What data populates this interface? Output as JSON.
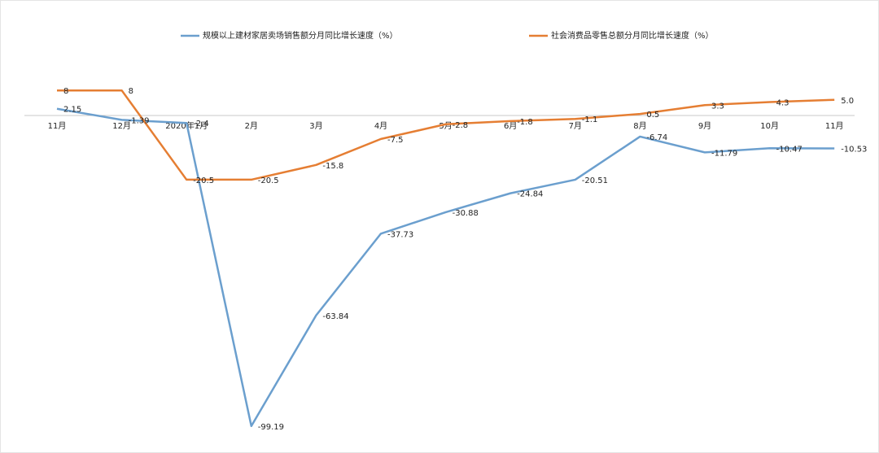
{
  "chart_data": {
    "type": "line",
    "categories": [
      "11月",
      "12月",
      "2020年1月",
      "2月",
      "3月",
      "4月",
      "5月",
      "6月",
      "7月",
      "8月",
      "9月",
      "10月",
      "11月"
    ],
    "series": [
      {
        "name": "规模以上建材家居卖场销售额分月同比增长速度（%）",
        "color": "#6b9fce",
        "values": [
          2.15,
          -1.39,
          -2.4,
          -99.19,
          -63.84,
          -37.73,
          -30.88,
          -24.84,
          -20.51,
          -6.74,
          -11.79,
          -10.47,
          -10.53
        ]
      },
      {
        "name": "社会消费品零售总额分月同比增长速度（%）",
        "color": "#e57e33",
        "values": [
          8,
          8,
          -20.5,
          -20.5,
          -15.8,
          -7.5,
          -2.8,
          -1.8,
          -1.1,
          0.5,
          3.3,
          4.3,
          5
        ],
        "value_labels": [
          "8",
          "8",
          "-20.5",
          "-20.5",
          "-15.8",
          "-7.5",
          "-2.8",
          "-1.8",
          "-1.1",
          "0.5",
          "3.3",
          "4.3",
          "5.0"
        ]
      }
    ]
  }
}
